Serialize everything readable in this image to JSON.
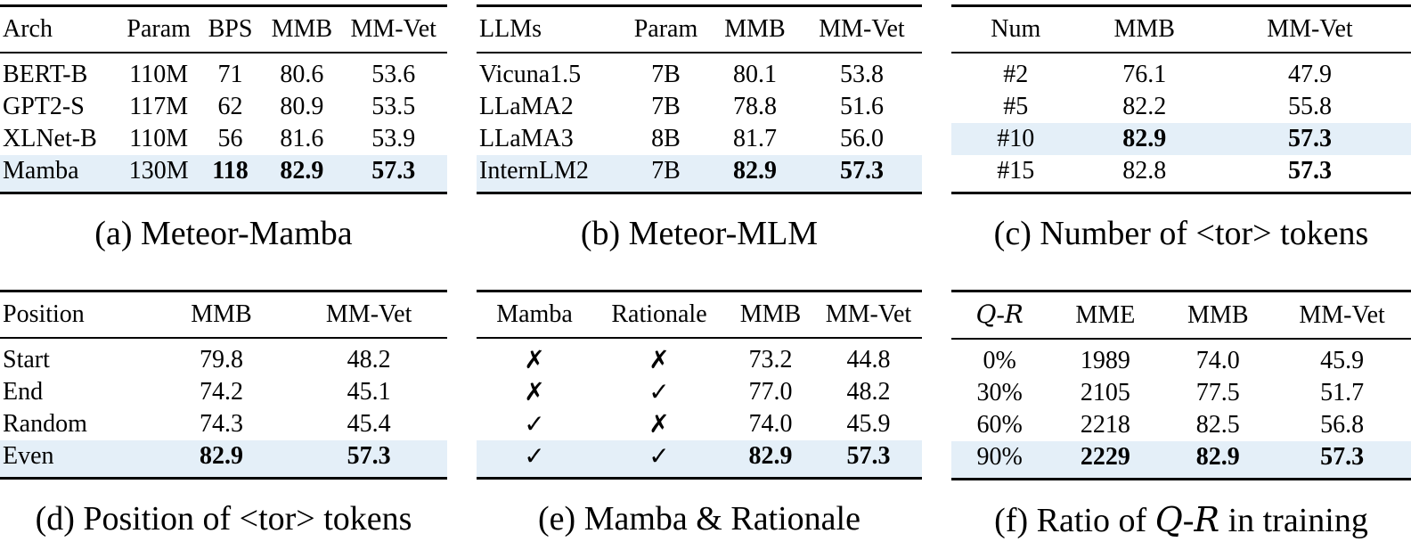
{
  "page": {
    "background": "#ffffff",
    "text_color": "#000000",
    "highlight_color": "#e4eff8",
    "rule_color": "#000000"
  },
  "tables": [
    {
      "id": "a",
      "caption": [
        {
          "text": "(a) Meteor-Mamba"
        }
      ],
      "align": [
        "left",
        "center",
        "center",
        "center",
        "center"
      ],
      "col_widths": [
        "27%",
        "17%",
        "15%",
        "17%",
        "24%"
      ],
      "columns": [
        [
          {
            "text": "Arch"
          }
        ],
        [
          {
            "text": "Param"
          }
        ],
        [
          {
            "text": "BPS"
          }
        ],
        [
          {
            "text": "MMB"
          }
        ],
        [
          {
            "text": "MM-Vet"
          }
        ]
      ],
      "rows": [
        {
          "cells": [
            "BERT-B",
            "110M",
            "71",
            "80.6",
            "53.6"
          ],
          "bold": [],
          "highlight": false
        },
        {
          "cells": [
            "GPT2-S",
            "117M",
            "62",
            "80.9",
            "53.5"
          ],
          "bold": [],
          "highlight": false
        },
        {
          "cells": [
            "XLNet-B",
            "110M",
            "56",
            "81.6",
            "53.9"
          ],
          "bold": [],
          "highlight": false
        },
        {
          "cells": [
            "Mamba",
            "130M",
            "118",
            "82.9",
            "57.3"
          ],
          "bold": [
            2,
            3,
            4
          ],
          "highlight": true
        }
      ]
    },
    {
      "id": "b",
      "caption": [
        {
          "text": "(b) Meteor-MLM"
        }
      ],
      "align": [
        "left",
        "center",
        "center",
        "center"
      ],
      "col_widths": [
        "33%",
        "19%",
        "21%",
        "27%"
      ],
      "columns": [
        [
          {
            "text": "LLMs"
          }
        ],
        [
          {
            "text": "Param"
          }
        ],
        [
          {
            "text": "MMB"
          }
        ],
        [
          {
            "text": "MM-Vet"
          }
        ]
      ],
      "rows": [
        {
          "cells": [
            "Vicuna1.5",
            "7B",
            "80.1",
            "53.8"
          ],
          "bold": [],
          "highlight": false
        },
        {
          "cells": [
            "LLaMA2",
            "7B",
            "78.8",
            "51.6"
          ],
          "bold": [],
          "highlight": false
        },
        {
          "cells": [
            "LLaMA3",
            "8B",
            "81.7",
            "56.0"
          ],
          "bold": [],
          "highlight": false
        },
        {
          "cells": [
            "InternLM2",
            "7B",
            "82.9",
            "57.3"
          ],
          "bold": [
            2,
            3
          ],
          "highlight": true
        }
      ]
    },
    {
      "id": "c",
      "caption": [
        {
          "text": "(c) Number of <tor> tokens"
        }
      ],
      "align": [
        "center",
        "center",
        "center"
      ],
      "col_widths": [
        "28%",
        "28%",
        "44%"
      ],
      "columns": [
        [
          {
            "text": "Num"
          }
        ],
        [
          {
            "text": "MMB"
          }
        ],
        [
          {
            "text": "MM-Vet"
          }
        ]
      ],
      "rows": [
        {
          "cells": [
            "#2",
            "76.1",
            "47.9"
          ],
          "bold": [],
          "highlight": false
        },
        {
          "cells": [
            "#5",
            "82.2",
            "55.8"
          ],
          "bold": [],
          "highlight": false
        },
        {
          "cells": [
            "#10",
            "82.9",
            "57.3"
          ],
          "bold": [
            1,
            2
          ],
          "highlight": true
        },
        {
          "cells": [
            "#15",
            "82.8",
            "57.3"
          ],
          "bold": [
            2
          ],
          "highlight": false
        }
      ]
    },
    {
      "id": "d",
      "caption": [
        {
          "text": "(d) Position of <tor> tokens"
        }
      ],
      "align": [
        "left",
        "center",
        "center"
      ],
      "col_widths": [
        "34%",
        "31%",
        "35%"
      ],
      "columns": [
        [
          {
            "text": "Position"
          }
        ],
        [
          {
            "text": "MMB"
          }
        ],
        [
          {
            "text": "MM-Vet"
          }
        ]
      ],
      "rows": [
        {
          "cells": [
            "Start",
            "79.8",
            "48.2"
          ],
          "bold": [],
          "highlight": false
        },
        {
          "cells": [
            "End",
            "74.2",
            "45.1"
          ],
          "bold": [],
          "highlight": false
        },
        {
          "cells": [
            "Random",
            "74.3",
            "45.4"
          ],
          "bold": [],
          "highlight": false
        },
        {
          "cells": [
            "Even",
            "82.9",
            "57.3"
          ],
          "bold": [
            1,
            2
          ],
          "highlight": true
        }
      ]
    },
    {
      "id": "e",
      "caption": [
        {
          "text": "(e) Mamba & Rationale"
        }
      ],
      "align": [
        "center",
        "center",
        "center",
        "center"
      ],
      "col_widths": [
        "26%",
        "30%",
        "20%",
        "24%"
      ],
      "columns": [
        [
          {
            "text": "Mamba"
          }
        ],
        [
          {
            "text": "Rationale"
          }
        ],
        [
          {
            "text": "MMB"
          }
        ],
        [
          {
            "text": "MM-Vet"
          }
        ]
      ],
      "rows": [
        {
          "cells": [
            "✗",
            "✗",
            "73.2",
            "44.8"
          ],
          "bold": [],
          "highlight": false
        },
        {
          "cells": [
            "✗",
            "✓",
            "77.0",
            "48.2"
          ],
          "bold": [],
          "highlight": false
        },
        {
          "cells": [
            "✓",
            "✗",
            "74.0",
            "45.9"
          ],
          "bold": [],
          "highlight": false
        },
        {
          "cells": [
            "✓",
            "✓",
            "82.9",
            "57.3"
          ],
          "bold": [
            2,
            3
          ],
          "highlight": true
        }
      ]
    },
    {
      "id": "f",
      "caption": [
        {
          "text": "(f) Ratio of "
        },
        {
          "text": "Q",
          "style": "script"
        },
        {
          "text": "-"
        },
        {
          "text": "R",
          "style": "script"
        },
        {
          "text": " in training"
        }
      ],
      "align": [
        "center",
        "center",
        "center",
        "center"
      ],
      "col_widths": [
        "21%",
        "25%",
        "24%",
        "30%"
      ],
      "columns": [
        [
          {
            "text": "Q",
            "style": "script"
          },
          {
            "text": "-"
          },
          {
            "text": "R",
            "style": "script"
          }
        ],
        [
          {
            "text": "MME"
          }
        ],
        [
          {
            "text": "MMB"
          }
        ],
        [
          {
            "text": "MM-Vet"
          }
        ]
      ],
      "rows": [
        {
          "cells": [
            "0%",
            "1989",
            "74.0",
            "45.9"
          ],
          "bold": [],
          "highlight": false
        },
        {
          "cells": [
            "30%",
            "2105",
            "77.5",
            "51.7"
          ],
          "bold": [],
          "highlight": false
        },
        {
          "cells": [
            "60%",
            "2218",
            "82.5",
            "56.8"
          ],
          "bold": [],
          "highlight": false
        },
        {
          "cells": [
            "90%",
            "2229",
            "82.9",
            "57.3"
          ],
          "bold": [
            1,
            2,
            3
          ],
          "highlight": true
        }
      ]
    }
  ]
}
